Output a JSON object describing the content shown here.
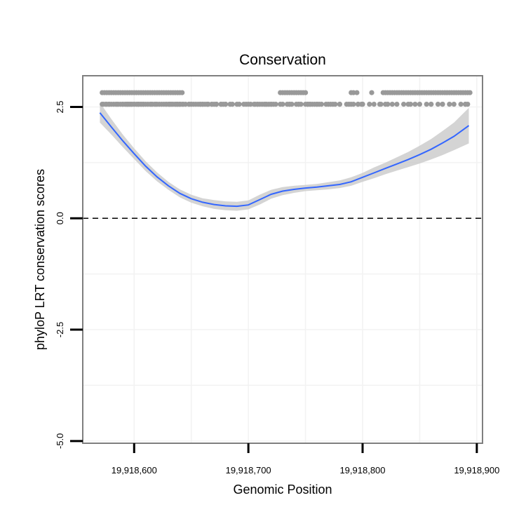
{
  "chart_data": {
    "type": "scatter",
    "title": "Conservation",
    "xlabel": "Genomic Position",
    "ylabel": "phyloP LRT conservation scores",
    "xlim": [
      19918555,
      19918905
    ],
    "ylim": [
      -5.05,
      3.2
    ],
    "x_ticks": [
      19918600,
      19918700,
      19918800,
      19918900
    ],
    "x_tick_labels": [
      "19,918,600",
      "19,918,700",
      "19,918,800",
      "19,918,900"
    ],
    "y_ticks": [
      -5.0,
      -2.5,
      0.0,
      2.5
    ],
    "y_tick_labels": [
      "-5.0",
      "-2.5",
      "0.0",
      "2.5"
    ],
    "reference_line_y": 0,
    "colors": {
      "points": "#999999",
      "smooth_line": "#3366ff",
      "confidence_band": "#cccccc",
      "panel_border": "#7f7f7f",
      "grid": "#f2f2f2"
    },
    "smooth": {
      "x": [
        19918570,
        19918580,
        19918590,
        19918600,
        19918610,
        19918620,
        19918630,
        19918640,
        19918650,
        19918660,
        19918670,
        19918680,
        19918690,
        19918700,
        19918710,
        19918720,
        19918730,
        19918740,
        19918750,
        19918760,
        19918770,
        19918780,
        19918790,
        19918800,
        19918810,
        19918820,
        19918830,
        19918840,
        19918850,
        19918860,
        19918870,
        19918880,
        19918893
      ],
      "y": [
        2.37,
        2.05,
        1.74,
        1.45,
        1.17,
        0.93,
        0.73,
        0.56,
        0.44,
        0.36,
        0.31,
        0.28,
        0.27,
        0.3,
        0.42,
        0.54,
        0.61,
        0.65,
        0.68,
        0.7,
        0.73,
        0.76,
        0.82,
        0.92,
        1.02,
        1.12,
        1.22,
        1.32,
        1.43,
        1.55,
        1.69,
        1.84,
        2.08
      ],
      "lower": [
        2.15,
        1.88,
        1.6,
        1.33,
        1.06,
        0.83,
        0.64,
        0.47,
        0.35,
        0.27,
        0.21,
        0.18,
        0.17,
        0.2,
        0.31,
        0.44,
        0.52,
        0.57,
        0.61,
        0.63,
        0.65,
        0.68,
        0.73,
        0.82,
        0.9,
        0.99,
        1.07,
        1.15,
        1.23,
        1.32,
        1.42,
        1.53,
        1.68
      ],
      "upper": [
        2.6,
        2.23,
        1.88,
        1.57,
        1.28,
        1.03,
        0.82,
        0.65,
        0.53,
        0.45,
        0.41,
        0.38,
        0.37,
        0.4,
        0.53,
        0.64,
        0.7,
        0.73,
        0.75,
        0.77,
        0.81,
        0.85,
        0.92,
        1.02,
        1.14,
        1.25,
        1.37,
        1.49,
        1.63,
        1.78,
        1.96,
        2.15,
        2.48
      ]
    },
    "points_x": [
      19918572,
      19918574,
      19918576,
      19918578,
      19918580,
      19918582,
      19918584,
      19918586,
      19918588,
      19918590,
      19918592,
      19918594,
      19918596,
      19918598,
      19918600,
      19918602,
      19918604,
      19918606,
      19918608,
      19918610,
      19918612,
      19918614,
      19918616,
      19918618,
      19918620,
      19918622,
      19918624,
      19918626,
      19918628,
      19918630,
      19918632,
      19918634,
      19918636,
      19918638,
      19918640,
      19918642,
      19918728,
      19918730,
      19918732,
      19918734,
      19918736,
      19918738,
      19918740,
      19918742,
      19918744,
      19918746,
      19918748,
      19918750,
      19918790,
      19918792,
      19918795,
      19918808,
      19918818,
      19918820,
      19918822,
      19918824,
      19918826,
      19918828,
      19918830,
      19918832,
      19918834,
      19918836,
      19918838,
      19918840,
      19918842,
      19918844,
      19918846,
      19918848,
      19918850,
      19918852,
      19918854,
      19918856,
      19918858,
      19918860,
      19918862,
      19918864,
      19918866,
      19918868,
      19918870,
      19918872,
      19918874,
      19918876,
      19918878,
      19918880,
      19918882,
      19918884,
      19918886,
      19918888,
      19918890,
      19918892,
      19918894,
      19918590,
      19918592,
      19918594,
      19918596,
      19918598,
      19918600,
      19918602,
      19918604,
      19918606,
      19918608,
      19918610,
      19918612,
      19918614,
      19918616,
      19918618,
      19918620,
      19918622,
      19918624,
      19918626,
      19918628,
      19918630,
      19918632,
      19918634,
      19918636,
      19918638,
      19918640,
      19918572,
      19918578,
      19918585,
      19918597,
      19918638,
      19918652,
      19918656,
      19918662,
      19918665,
      19918573,
      19918582,
      19918590,
      19918594,
      19918600,
      19918608,
      19918619,
      19918650,
      19918680,
      19918705,
      19918720,
      19918734,
      19918742,
      19918575,
      19918578,
      19918580,
      19918586,
      19918598,
      19918604,
      19918640,
      19918645,
      19918660,
      19918672,
      19918690,
      19918700,
      19918708,
      19918712,
      19918716,
      19918720,
      19918724,
      19918736,
      19918744,
      19918752,
      19918760,
      19918770,
      19918780,
      19918790,
      19918800,
      19918810,
      19918820,
      19918830,
      19918840,
      19918850,
      19918860,
      19918870,
      19918880,
      19918890,
      19918576,
      19918595,
      19918603,
      19918615,
      19918636,
      19918643,
      19918648,
      19918654,
      19918658,
      19918664,
      19918670,
      19918676,
      19918684,
      19918692,
      19918698,
      19918706,
      19918714,
      19918722,
      19918730,
      19918738,
      19918746,
      19918754,
      19918762,
      19918774,
      19918786,
      19918796,
      19918806,
      19918816,
      19918826,
      19918836,
      19918846,
      19918856,
      19918866,
      19918876,
      19918886,
      19918892,
      19918640,
      19918650,
      19918660,
      19918664,
      19918668,
      19918672,
      19918676,
      19918680,
      19918686,
      19918696,
      19918702,
      19918710,
      19918718,
      19918728,
      19918736,
      19918744,
      19918752,
      19918756,
      19918760,
      19918764,
      19918768,
      19918772,
      19918776,
      19918780,
      19918800,
      19918815,
      19918822,
      19918842,
      19918860,
      19918870,
      19918890,
      19918584,
      19918593,
      19918606,
      19918628,
      19918631,
      19918633,
      19918637,
      19918642,
      19918648,
      19918658,
      19918668,
      19918672,
      19918678,
      19918708,
      19918715,
      19918750,
      19918752,
      19918754,
      19918758,
      19918788,
      19918792,
      19918796,
      19918799,
      19918588,
      19918631,
      19918647,
      19918656,
      19918662,
      19918676,
      19918710,
      19918751,
      19918709,
      19918880,
      19918600
    ],
    "points_y": [
      2.82,
      2.82,
      2.82,
      2.82,
      2.82,
      2.82,
      2.82,
      2.82,
      2.82,
      2.82,
      2.82,
      2.82,
      2.82,
      2.82,
      2.82,
      2.82,
      2.82,
      2.82,
      2.82,
      2.82,
      2.82,
      2.82,
      2.82,
      2.82,
      2.82,
      2.82,
      2.82,
      2.82,
      2.82,
      2.82,
      2.82,
      2.82,
      2.82,
      2.82,
      2.82,
      2.82,
      2.82,
      2.82,
      2.82,
      2.82,
      2.82,
      2.82,
      2.82,
      2.82,
      2.82,
      2.82,
      2.82,
      2.82,
      2.82,
      2.82,
      2.82,
      2.82,
      2.82,
      2.82,
      2.82,
      2.82,
      2.82,
      2.82,
      2.82,
      2.82,
      2.82,
      2.82,
      2.82,
      2.82,
      2.82,
      2.82,
      2.82,
      2.82,
      2.82,
      2.82,
      2.82,
      2.82,
      2.82,
      2.82,
      2.82,
      2.82,
      2.82,
      2.82,
      2.82,
      2.82,
      2.82,
      2.82,
      2.82,
      2.82,
      2.82,
      2.82,
      2.82,
      2.82,
      2.82,
      2.82,
      2.82,
      2.56,
      2.56,
      2.56,
      2.56,
      2.56,
      2.56,
      2.56,
      2.56,
      2.56,
      2.56,
      2.56,
      2.56,
      2.56,
      2.56,
      2.56,
      2.56,
      2.56,
      2.56,
      2.56,
      2.56,
      2.56,
      2.56,
      2.56,
      2.56,
      2.56,
      2.56,
      2.56,
      2.56,
      2.56,
      2.56,
      2.56,
      2.56,
      2.56,
      2.56,
      2.56,
      2.56,
      2.56,
      2.56,
      2.56,
      2.56,
      2.56,
      2.56,
      2.56,
      2.56,
      2.56,
      2.56,
      2.56,
      2.56,
      2.56,
      2.56,
      2.56,
      2.56,
      2.56,
      2.56,
      2.56,
      2.56,
      2.56,
      2.56,
      2.56,
      2.56,
      2.56,
      2.56,
      2.56,
      2.56,
      2.56,
      2.56,
      2.56,
      2.56,
      2.56,
      2.56,
      2.56,
      2.56,
      2.56,
      2.56,
      2.56,
      2.56,
      2.56,
      2.56,
      2.56,
      2.56,
      2.56,
      2.56,
      2.56,
      2.56,
      2.56,
      2.56,
      2.56,
      2.56,
      2.56,
      2.56,
      2.56,
      2.56,
      2.56,
      2.56,
      2.56,
      2.56,
      2.56,
      2.56,
      2.56,
      2.56,
      2.56,
      2.56,
      2.56,
      2.56,
      2.56,
      2.56,
      2.56,
      2.56,
      2.56,
      2.56,
      2.56,
      2.56,
      2.56,
      2.56,
      2.56,
      2.56,
      2.56,
      2.56,
      2.56,
      2.56,
      2.56,
      2.56,
      2.56,
      2.56,
      2.56,
      2.56,
      2.56,
      2.56,
      2.56,
      2.56,
      2.56,
      2.56,
      2.56,
      2.56,
      2.56,
      2.56,
      2.56,
      2.56,
      2.56,
      2.56,
      2.56,
      2.56,
      2.56,
      2.56,
      2.56,
      2.56,
      2.56,
      2.56,
      2.56,
      2.56,
      2.56,
      2.56,
      2.56,
      2.56,
      2.56,
      2.56,
      2.56,
      2.56,
      2.56,
      2.56,
      2.56,
      2.56,
      2.56,
      2.56,
      2.56,
      2.56,
      2.56,
      2.56,
      2.56,
      2.56,
      2.56,
      2.56,
      2.56,
      2.56
    ]
  }
}
